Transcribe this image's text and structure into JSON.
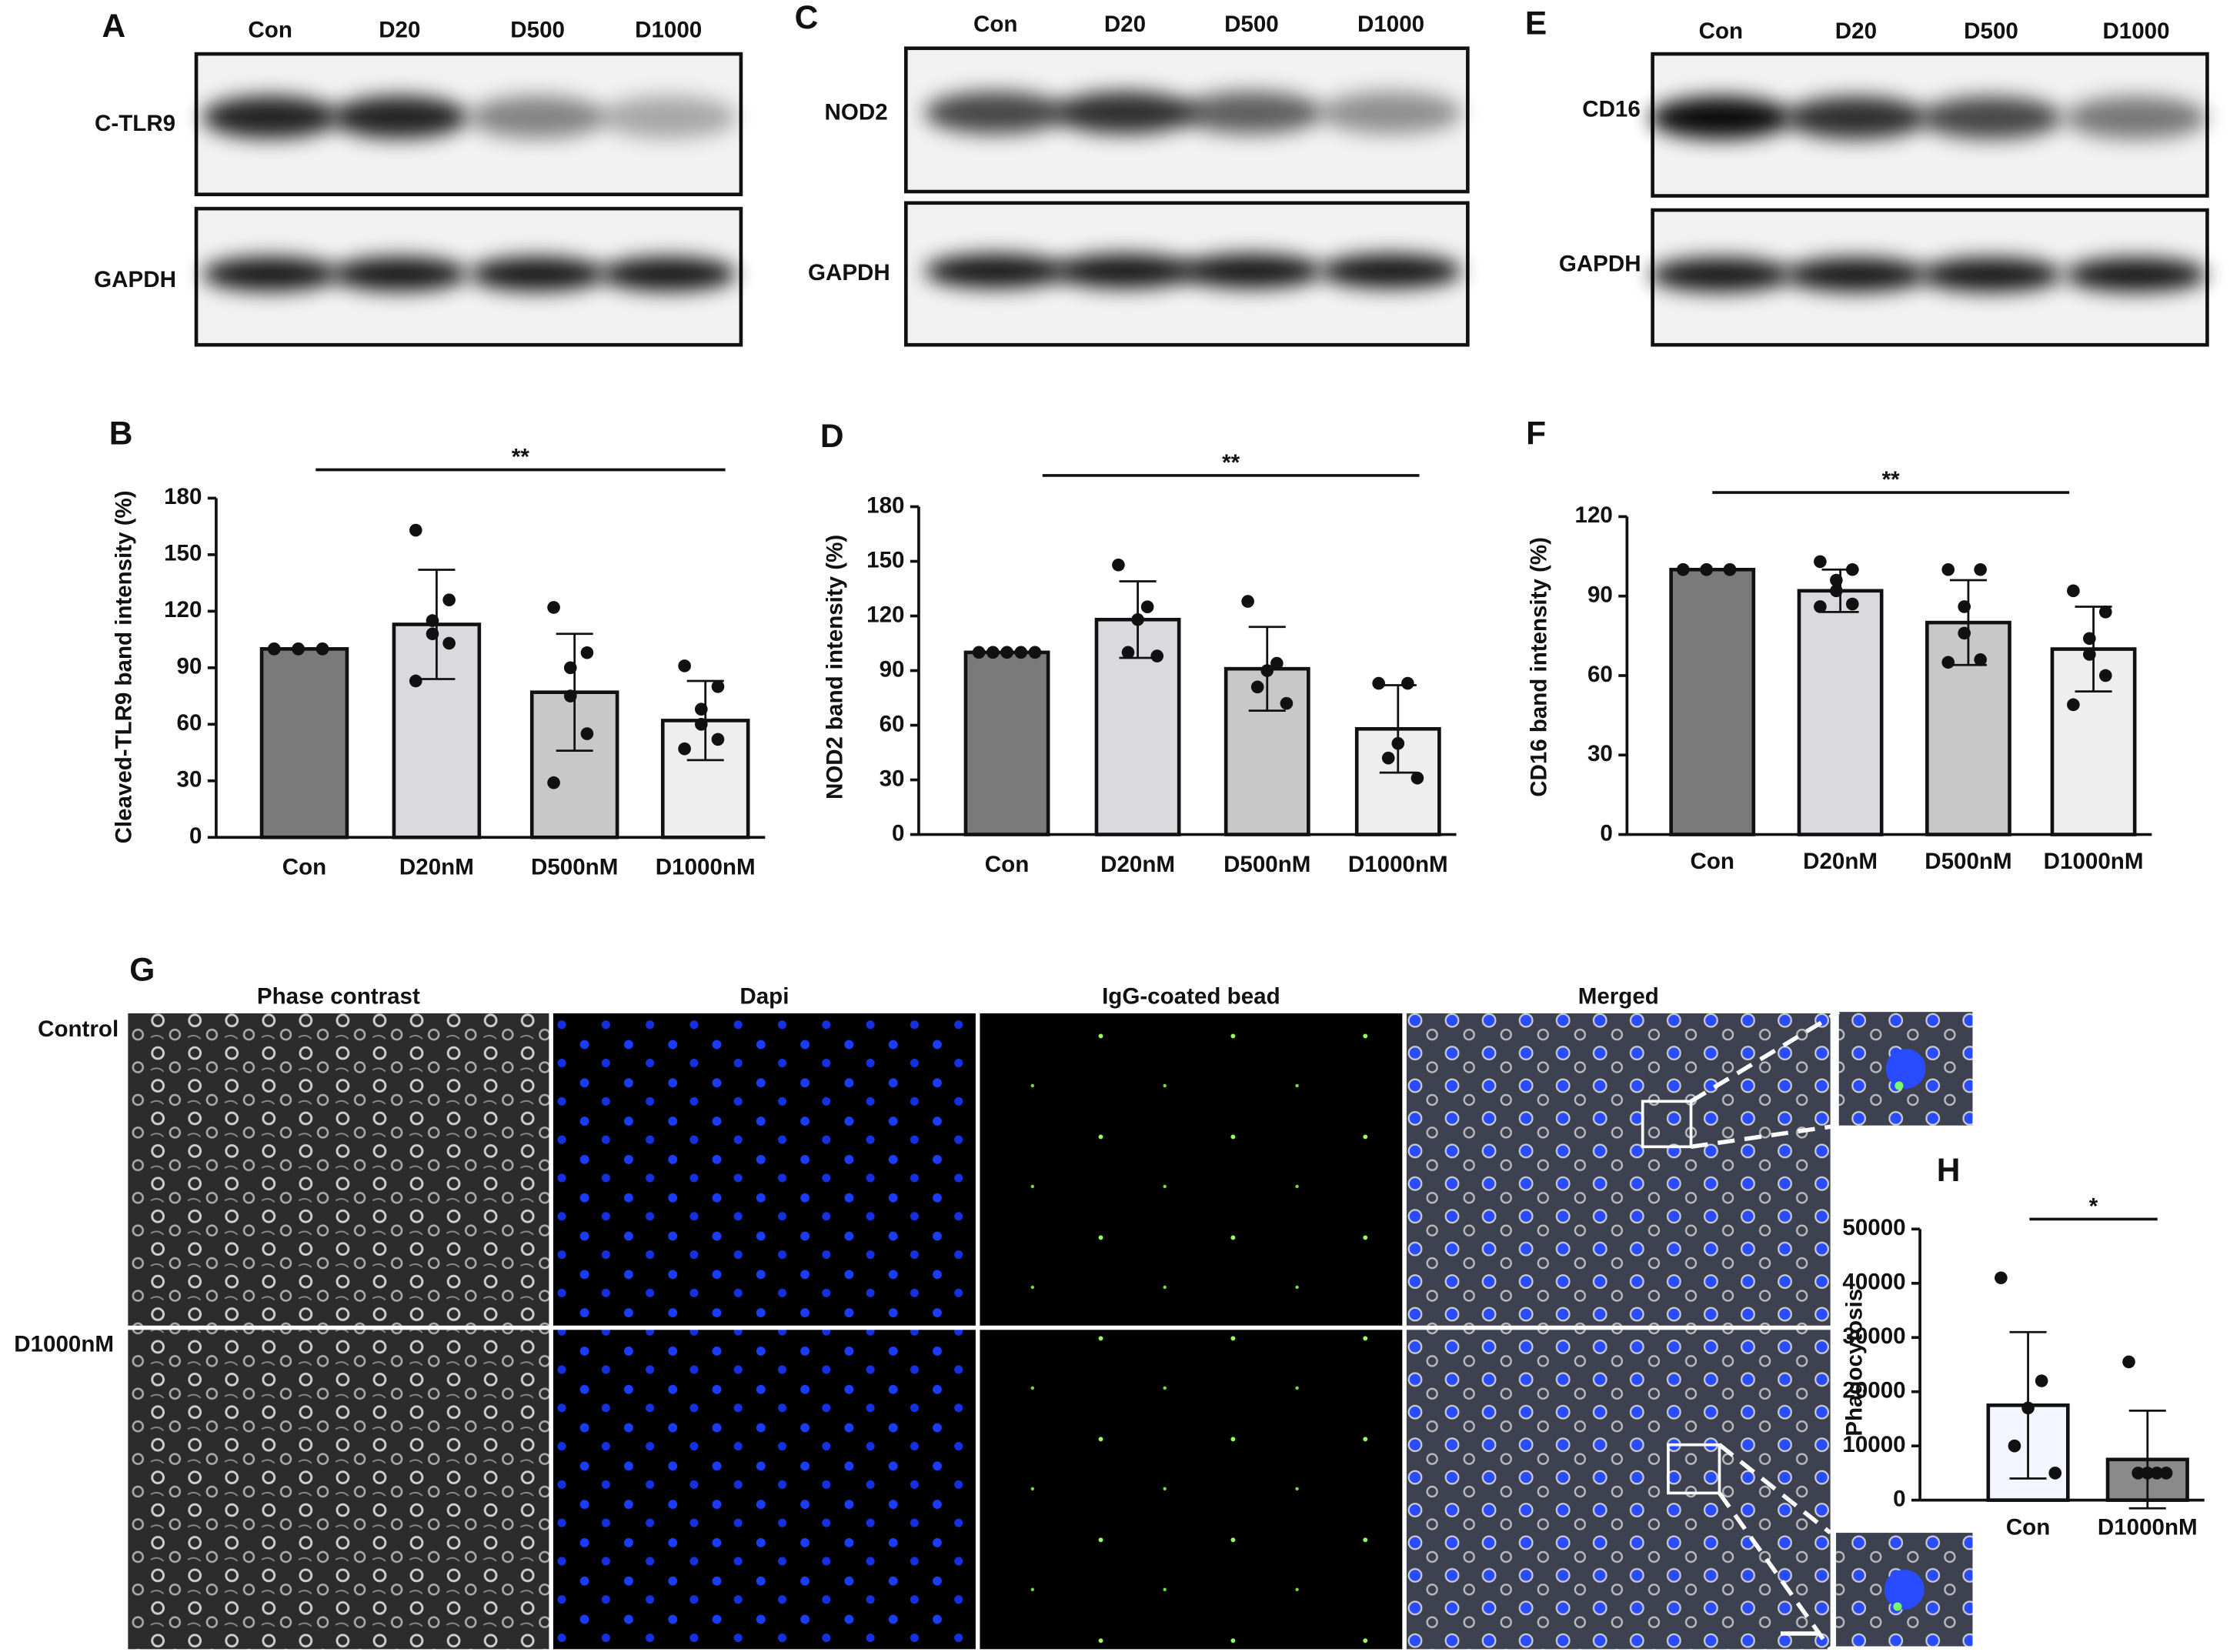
{
  "blots": [
    {
      "panel": "A",
      "lanes": [
        "Con",
        "D20",
        "D500",
        "D1000"
      ],
      "target": "C-TLR9",
      "loading": "GAPDH"
    },
    {
      "panel": "C",
      "lanes": [
        "Con",
        "D20",
        "D500",
        "D1000"
      ],
      "target": "NOD2",
      "loading": "GAPDH"
    },
    {
      "panel": "E",
      "lanes": [
        "Con",
        "D20",
        "D500",
        "D1000"
      ],
      "target": "CD16",
      "loading": "GAPDH"
    }
  ],
  "imaging": {
    "panel": "G",
    "columns": [
      "Phase contrast",
      "Dapi",
      "IgG-coated bead",
      "Merged"
    ],
    "rows": [
      "Control",
      "D1000nM"
    ]
  },
  "chart_data": [
    {
      "type": "bar",
      "panel": "B",
      "ylabel": "Cleaved-TLR9 band intensity (%)",
      "significance": "**",
      "categories": [
        "Con",
        "D20nM",
        "D500nM",
        "D1000nM"
      ],
      "values": [
        100,
        113,
        77,
        62
      ],
      "errors": [
        0,
        29,
        31,
        21
      ],
      "points": [
        [
          100,
          100,
          100,
          100,
          100,
          100
        ],
        [
          163,
          126,
          115,
          108,
          103,
          83
        ],
        [
          122,
          98,
          90,
          75,
          55,
          29
        ],
        [
          91,
          80,
          68,
          60,
          52,
          47
        ]
      ],
      "colors": [
        "#7a7a7a",
        "#dadade",
        "#c8c8c8",
        "#eeeeee"
      ],
      "ylim": [
        0,
        180
      ],
      "yticks": [
        0,
        30,
        60,
        90,
        120,
        150,
        180
      ]
    },
    {
      "type": "bar",
      "panel": "D",
      "ylabel": "NOD2 band intensity (%)",
      "significance": "**",
      "categories": [
        "Con",
        "D20nM",
        "D500nM",
        "D1000nM"
      ],
      "values": [
        100,
        118,
        91,
        58
      ],
      "errors": [
        0,
        21,
        23,
        24
      ],
      "points": [
        [
          100,
          100,
          100,
          100,
          100
        ],
        [
          148,
          125,
          118,
          100,
          98
        ],
        [
          128,
          94,
          90,
          81,
          72
        ],
        [
          83,
          83,
          50,
          42,
          31
        ]
      ],
      "colors": [
        "#7a7a7a",
        "#dadade",
        "#c8c8c8",
        "#eeeeee"
      ],
      "ylim": [
        0,
        180
      ],
      "yticks": [
        0,
        30,
        60,
        90,
        120,
        150,
        180
      ]
    },
    {
      "type": "bar",
      "panel": "F",
      "ylabel": "CD16 band intensity (%)",
      "significance": "**",
      "categories": [
        "Con",
        "D20nM",
        "D500nM",
        "D1000nM"
      ],
      "values": [
        100,
        92,
        80,
        70
      ],
      "errors": [
        0,
        8,
        16,
        16
      ],
      "points": [
        [
          100,
          100,
          100,
          100,
          100,
          100
        ],
        [
          103,
          100,
          96,
          92,
          87,
          86
        ],
        [
          100,
          100,
          86,
          76,
          66,
          65
        ],
        [
          92,
          84,
          74,
          68,
          60,
          49
        ]
      ],
      "colors": [
        "#7a7a7a",
        "#dadade",
        "#c8c8c8",
        "#eeeeee"
      ],
      "ylim": [
        0,
        120
      ],
      "yticks": [
        0,
        30,
        60,
        90,
        120
      ]
    },
    {
      "type": "bar",
      "panel": "H",
      "ylabel": "Phagocytosis",
      "significance": "*",
      "categories": [
        "Con",
        "D1000nM"
      ],
      "values": [
        17500,
        7500
      ],
      "errors": [
        13500,
        9000
      ],
      "points": [
        [
          41000,
          22000,
          17000,
          10000,
          5000
        ],
        [
          25500,
          5000,
          5000,
          5000,
          5000
        ]
      ],
      "colors": [
        "#f4f6ff",
        "#8a8a8a"
      ],
      "ylim": [
        0,
        50000
      ],
      "yticks": [
        0,
        10000,
        20000,
        30000,
        40000,
        50000
      ]
    }
  ]
}
